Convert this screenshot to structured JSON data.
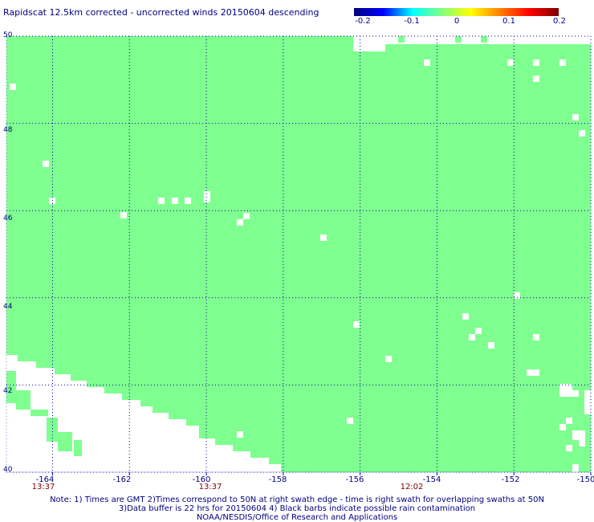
{
  "title": "Rapidscat 12.5km corrected - uncorrected winds 20150604 descending",
  "colorbar": {
    "ticks": [
      "-0.2",
      "-0.1",
      "0",
      "0.1",
      "0.2"
    ],
    "gradient": [
      "#00007f",
      "#0000ff",
      "#00ffff",
      "#7fff7f",
      "#ffff00",
      "#ff7f00",
      "#ff0000",
      "#7f0000"
    ]
  },
  "field_color": "#7fff8f",
  "grid_color": "#0000aa",
  "latitude_labels": [
    "50",
    "48",
    "46",
    "44",
    "42",
    "40"
  ],
  "longitude_labels": [
    "-164",
    "-162",
    "-160",
    "-158",
    "-156",
    "-154",
    "-152",
    "-150"
  ],
  "time_labels": [
    "13:37",
    "13:37",
    "12:02"
  ],
  "notes": [
    "Note: 1) Times are GMT 2)Times correspond to 50N at right swath edge - time is right swath for overlapping swaths at 50N",
    "3)Data buffer is 22 hrs for 20150604 4) Black barbs indicate possible rain contamination",
    "NOAA/NESDIS/Office of Research and Applications"
  ],
  "chart_data": {
    "type": "heatmap",
    "title": "Rapidscat 12.5km corrected - uncorrected winds 20150604 descending",
    "xlabel": "",
    "ylabel": "",
    "xlim": [
      -165.2,
      -150
    ],
    "ylim": [
      40,
      50
    ],
    "xticks": [
      -164,
      -162,
      -160,
      -158,
      -156,
      -154,
      -152,
      -150
    ],
    "yticks": [
      40,
      42,
      44,
      46,
      48,
      50
    ],
    "value_range": [
      -0.2,
      0.2
    ],
    "field_value": 0,
    "grid": true,
    "missing_data_note": "white cells indicate no data"
  }
}
